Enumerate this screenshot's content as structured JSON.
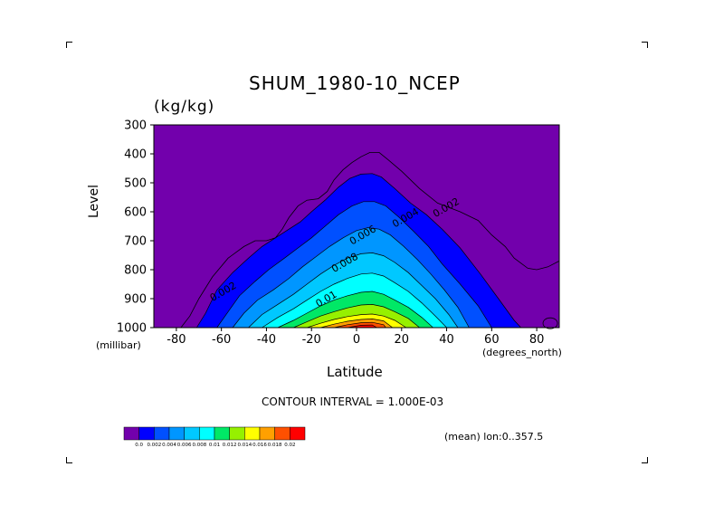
{
  "header": {
    "title": "SHUM_1980-10_NCEP",
    "units": "(kg/kg)"
  },
  "footer": {
    "contour_interval": "CONTOUR INTERVAL = 1.000E-03",
    "mean_note": "(mean) lon:0..357.5"
  },
  "chart_data": {
    "type": "contour",
    "title": "SHUM_1980-10_NCEP",
    "units": "(kg/kg)",
    "xlabel": "Latitude",
    "xunit": "(degrees_north)",
    "ylabel": "Level",
    "yunit": "(millibar)",
    "xlim": [
      -90,
      90
    ],
    "ylim": [
      1000,
      300
    ],
    "x_ticks": [
      -80,
      -60,
      -40,
      -20,
      0,
      20,
      40,
      60,
      80
    ],
    "y_ticks": [
      300,
      400,
      500,
      600,
      700,
      800,
      900,
      1000
    ],
    "contour_interval": 0.001,
    "contour_labels": [
      {
        "text": "0.002",
        "x": 35,
        "y": 620
      },
      {
        "text": "0.004",
        "x": 17,
        "y": 655
      },
      {
        "text": "0.006",
        "x": -2,
        "y": 715
      },
      {
        "text": "0.008",
        "x": -10,
        "y": 810
      },
      {
        "text": "0.01",
        "x": -17,
        "y": 930
      },
      {
        "text": "0.002",
        "x": -64,
        "y": 910
      }
    ],
    "colorbar": {
      "ticks": [
        "0.0",
        "0.002",
        "0.004",
        "0.006",
        "0.008",
        "0.01",
        "0.012",
        "0.014",
        "0.016",
        "0.018",
        "0.02"
      ],
      "colors": [
        "#7200ac",
        "#0000ff",
        "#0050ff",
        "#0096ff",
        "#00c8ff",
        "#00ffff",
        "#00e866",
        "#96f000",
        "#ffff00",
        "#ffa000",
        "#ff5000",
        "#ff0000"
      ]
    },
    "filled_levels": [
      {
        "min": 0.001,
        "color": "#0000ff",
        "points": [
          [
            -71,
            1000
          ],
          [
            -67,
            950
          ],
          [
            -62,
            870
          ],
          [
            -55,
            810
          ],
          [
            -48,
            760
          ],
          [
            -42,
            720
          ],
          [
            -36,
            690
          ],
          [
            -30,
            660
          ],
          [
            -25,
            635
          ],
          [
            -20,
            600
          ],
          [
            -14,
            560
          ],
          [
            -8,
            515
          ],
          [
            -3,
            485
          ],
          [
            2,
            470
          ],
          [
            7,
            468
          ],
          [
            11,
            480
          ],
          [
            17,
            520
          ],
          [
            24,
            570
          ],
          [
            31,
            610
          ],
          [
            38,
            660
          ],
          [
            46,
            725
          ],
          [
            55,
            815
          ],
          [
            63,
            900
          ],
          [
            70,
            975
          ],
          [
            73,
            1000
          ]
        ]
      },
      {
        "min": 0.002,
        "color": "#0050ff",
        "points": [
          [
            -62,
            1000
          ],
          [
            -57,
            945
          ],
          [
            -52,
            890
          ],
          [
            -45,
            840
          ],
          [
            -39,
            800
          ],
          [
            -32,
            760
          ],
          [
            -26,
            725
          ],
          [
            -20,
            690
          ],
          [
            -14,
            650
          ],
          [
            -8,
            610
          ],
          [
            -2,
            580
          ],
          [
            3,
            565
          ],
          [
            8,
            565
          ],
          [
            13,
            580
          ],
          [
            19,
            620
          ],
          [
            25,
            665
          ],
          [
            32,
            720
          ],
          [
            38,
            780
          ],
          [
            46,
            850
          ],
          [
            54,
            925
          ],
          [
            60,
            1000
          ]
        ]
      },
      {
        "min": 0.003,
        "color": "#0096ff",
        "points": [
          [
            -55,
            1000
          ],
          [
            -50,
            950
          ],
          [
            -44,
            905
          ],
          [
            -37,
            870
          ],
          [
            -30,
            830
          ],
          [
            -24,
            790
          ],
          [
            -18,
            755
          ],
          [
            -12,
            720
          ],
          [
            -6,
            690
          ],
          [
            0,
            665
          ],
          [
            5,
            655
          ],
          [
            10,
            660
          ],
          [
            15,
            680
          ],
          [
            21,
            720
          ],
          [
            27,
            765
          ],
          [
            33,
            815
          ],
          [
            39,
            870
          ],
          [
            45,
            930
          ],
          [
            50,
            1000
          ]
        ]
      },
      {
        "min": 0.004,
        "color": "#00c8ff",
        "points": [
          [
            -48,
            1000
          ],
          [
            -42,
            955
          ],
          [
            -35,
            920
          ],
          [
            -28,
            885
          ],
          [
            -22,
            850
          ],
          [
            -16,
            815
          ],
          [
            -10,
            785
          ],
          [
            -4,
            760
          ],
          [
            2,
            745
          ],
          [
            7,
            742
          ],
          [
            12,
            752
          ],
          [
            17,
            775
          ],
          [
            23,
            810
          ],
          [
            29,
            855
          ],
          [
            35,
            900
          ],
          [
            41,
            955
          ],
          [
            45,
            1000
          ]
        ]
      },
      {
        "min": 0.005,
        "color": "#00ffff",
        "points": [
          [
            -42,
            1000
          ],
          [
            -35,
            965
          ],
          [
            -28,
            935
          ],
          [
            -22,
            905
          ],
          [
            -16,
            875
          ],
          [
            -10,
            850
          ],
          [
            -4,
            830
          ],
          [
            2,
            815
          ],
          [
            7,
            812
          ],
          [
            12,
            822
          ],
          [
            17,
            845
          ],
          [
            23,
            875
          ],
          [
            29,
            915
          ],
          [
            35,
            960
          ],
          [
            40,
            1000
          ]
        ]
      },
      {
        "min": 0.006,
        "color": "#00e866",
        "points": [
          [
            -35,
            1000
          ],
          [
            -28,
            975
          ],
          [
            -22,
            950
          ],
          [
            -16,
            925
          ],
          [
            -10,
            905
          ],
          [
            -4,
            890
          ],
          [
            2,
            878
          ],
          [
            7,
            875
          ],
          [
            12,
            885
          ],
          [
            17,
            905
          ],
          [
            23,
            930
          ],
          [
            29,
            965
          ],
          [
            34,
            1000
          ]
        ]
      },
      {
        "min": 0.007,
        "color": "#96f000",
        "points": [
          [
            -28,
            1000
          ],
          [
            -22,
            980
          ],
          [
            -16,
            960
          ],
          [
            -10,
            945
          ],
          [
            -4,
            932
          ],
          [
            2,
            922
          ],
          [
            7,
            920
          ],
          [
            12,
            928
          ],
          [
            17,
            945
          ],
          [
            23,
            968
          ],
          [
            28,
            1000
          ]
        ]
      },
      {
        "min": 0.008,
        "color": "#ffff00",
        "points": [
          [
            -22,
            1000
          ],
          [
            -16,
            985
          ],
          [
            -10,
            972
          ],
          [
            -4,
            962
          ],
          [
            2,
            955
          ],
          [
            7,
            953
          ],
          [
            12,
            960
          ],
          [
            17,
            975
          ],
          [
            22,
            1000
          ]
        ]
      },
      {
        "min": 0.009,
        "color": "#ffa000",
        "points": [
          [
            -16,
            1000
          ],
          [
            -10,
            988
          ],
          [
            -4,
            978
          ],
          [
            2,
            972
          ],
          [
            7,
            970
          ],
          [
            12,
            977
          ],
          [
            16,
            1000
          ]
        ]
      },
      {
        "min": 0.01,
        "color": "#ff5000",
        "points": [
          [
            -10,
            1000
          ],
          [
            -4,
            990
          ],
          [
            2,
            983
          ],
          [
            7,
            982
          ],
          [
            12,
            990
          ],
          [
            13,
            1000
          ]
        ]
      },
      {
        "min": 0.011,
        "color": "#ff0000",
        "points": [
          [
            -4,
            1000
          ],
          [
            2,
            992
          ],
          [
            7,
            991
          ],
          [
            9,
            1000
          ]
        ]
      }
    ],
    "outer_contour": {
      "value": 0.001,
      "points": [
        [
          -78,
          1000
        ],
        [
          -74,
          960
        ],
        [
          -70,
          900
        ],
        [
          -64,
          825
        ],
        [
          -57,
          760
        ],
        [
          -50,
          720
        ],
        [
          -45,
          700
        ],
        [
          -40,
          700
        ],
        [
          -36,
          690
        ],
        [
          -33,
          660
        ],
        [
          -30,
          620
        ],
        [
          -26,
          580
        ],
        [
          -22,
          560
        ],
        [
          -17,
          555
        ],
        [
          -13,
          530
        ],
        [
          -10,
          490
        ],
        [
          -6,
          455
        ],
        [
          -2,
          430
        ],
        [
          2,
          410
        ],
        [
          6,
          395
        ],
        [
          10,
          395
        ],
        [
          14,
          420
        ],
        [
          20,
          460
        ],
        [
          28,
          520
        ],
        [
          36,
          570
        ],
        [
          46,
          600
        ],
        [
          54,
          630
        ],
        [
          60,
          680
        ],
        [
          66,
          720
        ],
        [
          70,
          760
        ],
        [
          76,
          795
        ],
        [
          80,
          800
        ],
        [
          85,
          790
        ],
        [
          90,
          770
        ]
      ]
    }
  }
}
